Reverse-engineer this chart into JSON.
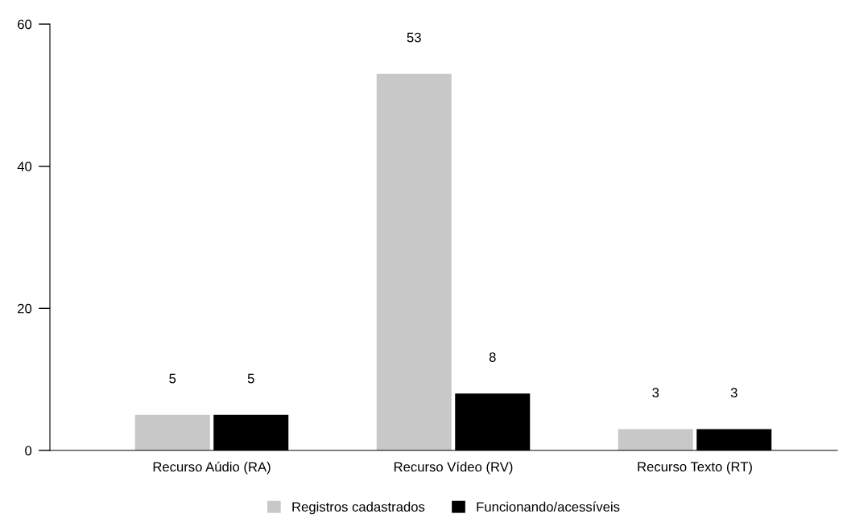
{
  "chart_data": {
    "type": "bar",
    "categories": [
      "Recurso Aúdio (RA)",
      "Recurso Vídeo (RV)",
      "Recurso Texto (RT)"
    ],
    "series": [
      {
        "name": "Registros cadastrados",
        "color": "#c8c8c8",
        "values": [
          5,
          53,
          3
        ]
      },
      {
        "name": "Funcionando/acessíveis",
        "color": "#000000",
        "values": [
          5,
          8,
          3
        ]
      }
    ],
    "ylim": [
      0,
      60
    ],
    "yticks": [
      0,
      20,
      40,
      60
    ],
    "grid": false,
    "legend": "bottom",
    "data_labels": true
  }
}
